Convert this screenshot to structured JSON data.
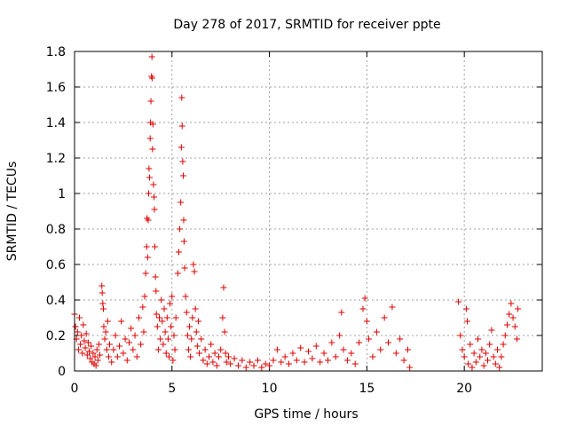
{
  "chart_data": {
    "type": "scatter",
    "title": "Day 278 of 2017, SRMTID for receiver ppte",
    "xlabel": "GPS time / hours",
    "ylabel": "SRMTID / TECUs",
    "xlim": [
      0,
      24
    ],
    "ylim": [
      0,
      1.8
    ],
    "xticks": [
      0,
      5,
      10,
      15,
      20
    ],
    "yticks": [
      0,
      0.2,
      0.4,
      0.6,
      0.8,
      1,
      1.2,
      1.4,
      1.6,
      1.8
    ],
    "xtick_labels": [
      "0",
      "5",
      "10",
      "15",
      "20"
    ],
    "ytick_labels": [
      "0",
      "0.2",
      "0.4",
      "0.6",
      "0.8",
      "1",
      "1.2",
      "1.4",
      "1.6",
      "1.8"
    ],
    "grid": true,
    "marker": "+",
    "color": "#e00000",
    "series": [
      {
        "name": "ppte",
        "points": [
          [
            0.0,
            0.32
          ],
          [
            0.05,
            0.25
          ],
          [
            0.1,
            0.18
          ],
          [
            0.15,
            0.22
          ],
          [
            0.2,
            0.12
          ],
          [
            0.25,
            0.3
          ],
          [
            0.3,
            0.15
          ],
          [
            0.35,
            0.2
          ],
          [
            0.4,
            0.1
          ],
          [
            0.45,
            0.26
          ],
          [
            0.5,
            0.17
          ],
          [
            0.55,
            0.13
          ],
          [
            0.6,
            0.21
          ],
          [
            0.65,
            0.09
          ],
          [
            0.7,
            0.16
          ],
          [
            0.75,
            0.11
          ],
          [
            0.8,
            0.07
          ],
          [
            0.85,
            0.14
          ],
          [
            0.9,
            0.05
          ],
          [
            0.95,
            0.1
          ],
          [
            1.0,
            0.04
          ],
          [
            1.05,
            0.08
          ],
          [
            1.1,
            0.03
          ],
          [
            1.15,
            0.12
          ],
          [
            1.2,
            0.06
          ],
          [
            1.25,
            0.15
          ],
          [
            1.3,
            0.09
          ],
          [
            1.4,
            0.48
          ],
          [
            1.42,
            0.44
          ],
          [
            1.45,
            0.38
          ],
          [
            1.48,
            0.35
          ],
          [
            1.5,
            0.25
          ],
          [
            1.55,
            0.18
          ],
          [
            1.6,
            0.22
          ],
          [
            1.65,
            0.12
          ],
          [
            1.7,
            0.28
          ],
          [
            1.75,
            0.08
          ],
          [
            1.8,
            0.15
          ],
          [
            1.9,
            0.05
          ],
          [
            2.0,
            0.12
          ],
          [
            2.1,
            0.2
          ],
          [
            2.2,
            0.08
          ],
          [
            2.3,
            0.14
          ],
          [
            2.4,
            0.28
          ],
          [
            2.5,
            0.1
          ],
          [
            2.6,
            0.18
          ],
          [
            2.7,
            0.06
          ],
          [
            2.8,
            0.16
          ],
          [
            2.9,
            0.24
          ],
          [
            3.0,
            0.12
          ],
          [
            3.1,
            0.2
          ],
          [
            3.2,
            0.08
          ],
          [
            3.3,
            0.3
          ],
          [
            3.4,
            0.15
          ],
          [
            3.5,
            0.36
          ],
          [
            3.55,
            0.22
          ],
          [
            3.6,
            0.42
          ],
          [
            3.65,
            0.55
          ],
          [
            3.7,
            0.7
          ],
          [
            3.72,
            0.86
          ],
          [
            3.75,
            0.64
          ],
          [
            3.78,
            0.85
          ],
          [
            3.8,
            1.0
          ],
          [
            3.82,
            1.14
          ],
          [
            3.85,
            1.09
          ],
          [
            3.88,
            1.31
          ],
          [
            3.9,
            1.4
          ],
          [
            3.92,
            1.52
          ],
          [
            3.95,
            1.66
          ],
          [
            3.97,
            1.77
          ],
          [
            3.98,
            1.65
          ],
          [
            4.0,
            1.25
          ],
          [
            4.02,
            1.39
          ],
          [
            4.05,
            1.05
          ],
          [
            4.08,
            0.98
          ],
          [
            4.1,
            0.91
          ],
          [
            4.12,
            0.7
          ],
          [
            4.15,
            0.53
          ],
          [
            4.18,
            0.45
          ],
          [
            4.2,
            0.32
          ],
          [
            4.25,
            0.25
          ],
          [
            4.3,
            0.12
          ],
          [
            4.35,
            0.3
          ],
          [
            4.4,
            0.18
          ],
          [
            4.45,
            0.4
          ],
          [
            4.5,
            0.28
          ],
          [
            4.55,
            0.15
          ],
          [
            4.6,
            0.35
          ],
          [
            4.65,
            0.22
          ],
          [
            4.7,
            0.1
          ],
          [
            4.75,
            0.3
          ],
          [
            4.8,
            0.18
          ],
          [
            4.85,
            0.08
          ],
          [
            4.9,
            0.38
          ],
          [
            4.95,
            0.25
          ],
          [
            5.0,
            0.42
          ],
          [
            5.05,
            0.06
          ],
          [
            5.1,
            0.2
          ],
          [
            5.15,
            0.12
          ],
          [
            5.2,
            0.3
          ],
          [
            5.3,
            0.55
          ],
          [
            5.35,
            0.67
          ],
          [
            5.4,
            0.8
          ],
          [
            5.45,
            0.95
          ],
          [
            5.48,
            1.26
          ],
          [
            5.5,
            1.54
          ],
          [
            5.52,
            1.38
          ],
          [
            5.55,
            1.18
          ],
          [
            5.58,
            1.1
          ],
          [
            5.6,
            0.85
          ],
          [
            5.62,
            0.73
          ],
          [
            5.65,
            0.58
          ],
          [
            5.7,
            0.42
          ],
          [
            5.75,
            0.33
          ],
          [
            5.8,
            0.2
          ],
          [
            5.85,
            0.12
          ],
          [
            5.9,
            0.25
          ],
          [
            5.95,
            0.08
          ],
          [
            6.0,
            0.18
          ],
          [
            6.05,
            0.3
          ],
          [
            6.1,
            0.6
          ],
          [
            6.15,
            0.56
          ],
          [
            6.2,
            0.35
          ],
          [
            6.25,
            0.22
          ],
          [
            6.3,
            0.14
          ],
          [
            6.35,
            0.28
          ],
          [
            6.4,
            0.1
          ],
          [
            6.5,
            0.18
          ],
          [
            6.6,
            0.06
          ],
          [
            6.7,
            0.12
          ],
          [
            6.8,
            0.04
          ],
          [
            6.9,
            0.08
          ],
          [
            7.0,
            0.15
          ],
          [
            7.1,
            0.05
          ],
          [
            7.2,
            0.1
          ],
          [
            7.3,
            0.03
          ],
          [
            7.4,
            0.08
          ],
          [
            7.5,
            0.12
          ],
          [
            7.6,
            0.3
          ],
          [
            7.65,
            0.47
          ],
          [
            7.7,
            0.22
          ],
          [
            7.75,
            0.1
          ],
          [
            7.8,
            0.05
          ],
          [
            7.9,
            0.08
          ],
          [
            8.0,
            0.04
          ],
          [
            8.2,
            0.07
          ],
          [
            8.4,
            0.03
          ],
          [
            8.6,
            0.06
          ],
          [
            8.8,
            0.02
          ],
          [
            9.0,
            0.05
          ],
          [
            9.2,
            0.03
          ],
          [
            9.4,
            0.06
          ],
          [
            9.6,
            0.02
          ],
          [
            9.8,
            0.04
          ],
          [
            10.0,
            0.03
          ],
          [
            10.2,
            0.06
          ],
          [
            10.4,
            0.12
          ],
          [
            10.6,
            0.05
          ],
          [
            10.8,
            0.08
          ],
          [
            11.0,
            0.04
          ],
          [
            11.2,
            0.1
          ],
          [
            11.4,
            0.06
          ],
          [
            11.6,
            0.13
          ],
          [
            11.8,
            0.05
          ],
          [
            12.0,
            0.11
          ],
          [
            12.2,
            0.07
          ],
          [
            12.4,
            0.14
          ],
          [
            12.6,
            0.05
          ],
          [
            12.8,
            0.1
          ],
          [
            13.0,
            0.06
          ],
          [
            13.2,
            0.16
          ],
          [
            13.4,
            0.08
          ],
          [
            13.6,
            0.2
          ],
          [
            13.7,
            0.33
          ],
          [
            13.8,
            0.12
          ],
          [
            14.0,
            0.06
          ],
          [
            14.2,
            0.1
          ],
          [
            14.4,
            0.04
          ],
          [
            14.6,
            0.16
          ],
          [
            14.8,
            0.35
          ],
          [
            14.9,
            0.41
          ],
          [
            15.0,
            0.28
          ],
          [
            15.1,
            0.18
          ],
          [
            15.3,
            0.08
          ],
          [
            15.5,
            0.22
          ],
          [
            15.7,
            0.12
          ],
          [
            15.9,
            0.3
          ],
          [
            16.1,
            0.16
          ],
          [
            16.3,
            0.36
          ],
          [
            16.5,
            0.1
          ],
          [
            16.7,
            0.18
          ],
          [
            16.9,
            0.06
          ],
          [
            17.1,
            0.12
          ],
          [
            17.2,
            0.02
          ],
          [
            19.7,
            0.39
          ],
          [
            19.8,
            0.2
          ],
          [
            19.9,
            0.12
          ],
          [
            20.0,
            0.08
          ],
          [
            20.1,
            0.35
          ],
          [
            20.15,
            0.28
          ],
          [
            20.2,
            0.04
          ],
          [
            20.3,
            0.15
          ],
          [
            20.4,
            0.02
          ],
          [
            20.5,
            0.1
          ],
          [
            20.6,
            0.05
          ],
          [
            20.7,
            0.18
          ],
          [
            20.8,
            0.08
          ],
          [
            20.9,
            0.12
          ],
          [
            21.0,
            0.03
          ],
          [
            21.1,
            0.1
          ],
          [
            21.2,
            0.06
          ],
          [
            21.3,
            0.15
          ],
          [
            21.4,
            0.23
          ],
          [
            21.5,
            0.08
          ],
          [
            21.6,
            0.04
          ],
          [
            21.7,
            0.12
          ],
          [
            21.8,
            0.02
          ],
          [
            21.9,
            0.08
          ],
          [
            22.0,
            0.15
          ],
          [
            22.1,
            0.2
          ],
          [
            22.2,
            0.26
          ],
          [
            22.3,
            0.32
          ],
          [
            22.4,
            0.38
          ],
          [
            22.5,
            0.3
          ],
          [
            22.6,
            0.25
          ],
          [
            22.7,
            0.18
          ],
          [
            22.75,
            0.35
          ]
        ]
      }
    ]
  }
}
